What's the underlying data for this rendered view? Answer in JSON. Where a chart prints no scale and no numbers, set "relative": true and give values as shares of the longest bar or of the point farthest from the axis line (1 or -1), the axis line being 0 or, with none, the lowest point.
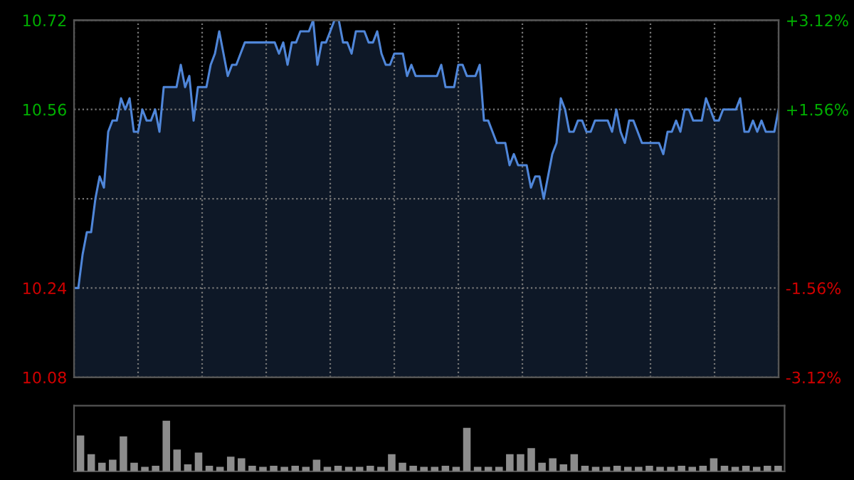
{
  "chart_data": [
    {
      "type": "area",
      "categories": [
        null,
        null,
        null,
        null,
        null,
        null,
        null,
        null,
        null,
        null,
        null,
        null,
        null,
        null,
        null,
        null,
        null,
        null,
        null,
        null,
        null,
        null,
        null,
        null,
        null,
        null,
        null,
        null,
        null,
        null,
        null,
        null,
        null,
        null,
        null,
        null,
        null,
        null,
        null,
        null,
        null,
        null,
        null,
        null,
        null,
        null,
        null,
        null,
        null,
        null,
        null,
        null,
        null,
        null,
        null,
        null,
        null,
        null,
        null,
        null,
        null,
        null,
        null,
        null,
        null,
        null,
        null,
        null,
        null,
        null,
        null,
        null,
        null,
        null,
        null,
        null,
        null,
        null,
        null,
        null,
        null,
        null,
        null,
        null,
        null,
        null,
        null,
        null,
        null,
        null,
        null,
        null,
        null,
        null,
        null,
        null,
        null,
        null,
        null,
        null,
        null,
        null,
        null,
        null,
        null,
        null,
        null,
        null,
        null,
        null,
        null,
        null,
        null,
        null,
        null,
        null,
        null,
        null,
        null,
        null,
        null,
        null,
        null,
        null,
        null,
        null,
        null,
        null,
        null,
        null,
        null,
        null,
        null,
        null,
        null,
        null,
        null,
        null,
        null,
        null,
        null,
        null,
        null,
        null,
        null,
        null,
        null,
        null,
        null,
        null,
        null,
        null,
        null,
        null,
        null,
        null,
        null,
        null,
        null,
        null,
        null,
        null,
        null,
        null,
        null,
        null
      ],
      "series": [
        {
          "color": "#4f86d9",
          "values": [
            10.24,
            10.24,
            10.3,
            10.34,
            10.34,
            10.4,
            10.44,
            10.42,
            10.52,
            10.54,
            10.54,
            10.58,
            10.56,
            10.58,
            10.52,
            10.52,
            10.56,
            10.54,
            10.54,
            10.56,
            10.52,
            10.6,
            10.6,
            10.6,
            10.6,
            10.64,
            10.6,
            10.62,
            10.54,
            10.6,
            10.6,
            10.6,
            10.64,
            10.66,
            10.7,
            10.66,
            10.62,
            10.64,
            10.64,
            10.66,
            10.68,
            10.68,
            10.68,
            10.68,
            10.68,
            10.68,
            10.68,
            10.68,
            10.66,
            10.68,
            10.64,
            10.68,
            10.68,
            10.7,
            10.7,
            10.7,
            10.72,
            10.64,
            10.68,
            10.68,
            10.7,
            10.72,
            10.72,
            10.68,
            10.68,
            10.66,
            10.7,
            10.7,
            10.7,
            10.68,
            10.68,
            10.7,
            10.66,
            10.64,
            10.64,
            10.66,
            10.66,
            10.66,
            10.62,
            10.64,
            10.62,
            10.62,
            10.62,
            10.62,
            10.62,
            10.62,
            10.64,
            10.6,
            10.6,
            10.6,
            10.64,
            10.64,
            10.62,
            10.62,
            10.62,
            10.64,
            10.54,
            10.54,
            10.52,
            10.5,
            10.5,
            10.5,
            10.46,
            10.48,
            10.46,
            10.46,
            10.46,
            10.42,
            10.44,
            10.44,
            10.4,
            10.44,
            10.48,
            10.5,
            10.58,
            10.56,
            10.52,
            10.52,
            10.54,
            10.54,
            10.52,
            10.52,
            10.54,
            10.54,
            10.54,
            10.54,
            10.52,
            10.56,
            10.52,
            10.5,
            10.54,
            10.54,
            10.52,
            10.5,
            10.5,
            10.5,
            10.5,
            10.5,
            10.48,
            10.52,
            10.52,
            10.54,
            10.52,
            10.56,
            10.56,
            10.54,
            10.54,
            10.54,
            10.58,
            10.56,
            10.54,
            10.54,
            10.56,
            10.56,
            10.56,
            10.56,
            10.58,
            10.52,
            10.52,
            10.54,
            10.52,
            10.54,
            10.52,
            10.52,
            10.52,
            10.56
          ]
        }
      ],
      "ylim": [
        10.08,
        10.72
      ],
      "yticks": [
        10.08,
        10.24,
        {
          "value": 10.4,
          "label": null
        },
        10.56,
        10.72
      ],
      "y2lim": [
        -3.12,
        3.12
      ],
      "y2ticks": [
        {
          "value": -3.12,
          "label": "-3.12%"
        },
        {
          "value": -1.56,
          "label": "-1.56%"
        },
        {
          "value": 0,
          "label": null
        },
        {
          "value": 1.56,
          "label": "+1.56%"
        },
        {
          "value": 3.12,
          "label": "+3.12%"
        }
      ],
      "grid": true,
      "tick_labels": "y"
    },
    {
      "type": "bar",
      "relative": true,
      "color": "#8c8c8c",
      "categories": [
        null,
        null,
        null,
        null,
        null,
        null,
        null,
        null,
        null,
        null,
        null,
        null,
        null,
        null,
        null,
        null,
        null,
        null,
        null,
        null,
        null,
        null,
        null,
        null,
        null,
        null,
        null,
        null,
        null,
        null,
        null,
        null,
        null,
        null,
        null,
        null,
        null,
        null,
        null,
        null,
        null,
        null,
        null,
        null,
        null,
        null,
        null,
        null,
        null,
        null,
        null,
        null,
        null,
        null,
        null,
        null,
        null,
        null,
        null,
        null,
        null,
        null,
        null,
        null,
        null,
        null
      ],
      "values": [
        0.71,
        0.34,
        0.17,
        0.23,
        0.69,
        0.17,
        0.09,
        0.11,
        1,
        0.43,
        0.14,
        0.37,
        0.11,
        0.09,
        0.29,
        0.26,
        0.11,
        0.09,
        0.11,
        0.09,
        0.11,
        0.09,
        0.23,
        0.09,
        0.11,
        0.09,
        0.09,
        0.11,
        0.09,
        0.34,
        0.17,
        0.11,
        0.09,
        0.09,
        0.11,
        0.09,
        0.86,
        0.09,
        0.09,
        0.09,
        0.34,
        0.34,
        0.46,
        0.17,
        0.26,
        0.14,
        0.34,
        0.11,
        0.09,
        0.09,
        0.11,
        0.09,
        0.09,
        0.11,
        0.09,
        0.09,
        0.11,
        0.09,
        0.11,
        0.26,
        0.11,
        0.09,
        0.11,
        0.09,
        0.11,
        0.11
      ]
    }
  ]
}
